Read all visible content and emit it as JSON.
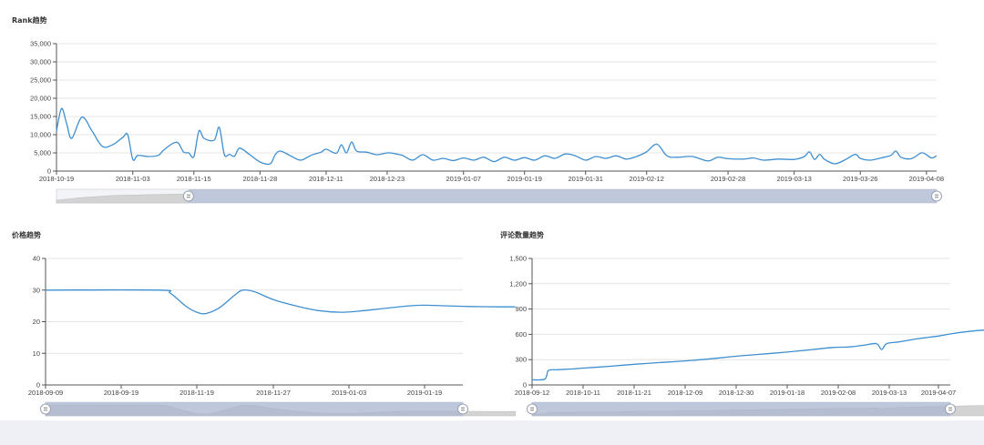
{
  "chart_data": [
    {
      "type": "line",
      "title": "Rank趋势",
      "ylim": [
        0,
        35000
      ],
      "y_ticks": [
        "0",
        "5,000",
        "10,000",
        "15,000",
        "20,000",
        "25,000",
        "30,000",
        "35,000"
      ],
      "x_ticks": [
        "2018-10-19",
        "2018-11-03",
        "2018-11-15",
        "2018-11-28",
        "2018-12-11",
        "2018-12-23",
        "2019-01-07",
        "2019-01-19",
        "2019-01-31",
        "2019-02-12",
        "2019-02-28",
        "2019-03-13",
        "2019-03-26",
        "2019-04-08"
      ],
      "x_range": [
        "2018-10-19",
        "2019-04-10"
      ],
      "grid": true,
      "color": "#3f8fd0",
      "data_zoom": [
        0.15,
        1.0
      ],
      "points": [
        [
          "2018-10-19",
          11000
        ],
        [
          "2018-10-20",
          17200
        ],
        [
          "2018-10-21",
          13000
        ],
        [
          "2018-10-22",
          9000
        ],
        [
          "2018-10-24",
          14800
        ],
        [
          "2018-10-26",
          11000
        ],
        [
          "2018-10-28",
          6800
        ],
        [
          "2018-10-30",
          7200
        ],
        [
          "2018-11-01",
          9200
        ],
        [
          "2018-11-02",
          10000
        ],
        [
          "2018-11-03",
          3200
        ],
        [
          "2018-11-04",
          4300
        ],
        [
          "2018-11-06",
          4000
        ],
        [
          "2018-11-08",
          4300
        ],
        [
          "2018-11-09",
          5700
        ],
        [
          "2018-11-11",
          7700
        ],
        [
          "2018-11-12",
          7600
        ],
        [
          "2018-11-13",
          5200
        ],
        [
          "2018-11-14",
          5000
        ],
        [
          "2018-11-15",
          4000
        ],
        [
          "2018-11-16",
          11000
        ],
        [
          "2018-11-17",
          9000
        ],
        [
          "2018-11-19",
          8500
        ],
        [
          "2018-11-20",
          12000
        ],
        [
          "2018-11-21",
          4500
        ],
        [
          "2018-11-22",
          4600
        ],
        [
          "2018-11-23",
          4100
        ],
        [
          "2018-11-24",
          6300
        ],
        [
          "2018-11-26",
          4500
        ],
        [
          "2018-11-28",
          2500
        ],
        [
          "2018-11-30",
          2000
        ],
        [
          "2018-12-01",
          4500
        ],
        [
          "2018-12-02",
          5500
        ],
        [
          "2018-12-04",
          4200
        ],
        [
          "2018-12-06",
          3000
        ],
        [
          "2018-12-08",
          4300
        ],
        [
          "2018-12-10",
          5200
        ],
        [
          "2018-12-11",
          6000
        ],
        [
          "2018-12-13",
          4900
        ],
        [
          "2018-12-14",
          7200
        ],
        [
          "2018-12-15",
          5000
        ],
        [
          "2018-12-16",
          8000
        ],
        [
          "2018-12-17",
          5500
        ],
        [
          "2018-12-19",
          5200
        ],
        [
          "2018-12-21",
          4500
        ],
        [
          "2018-12-23",
          5000
        ],
        [
          "2018-12-24",
          4900
        ],
        [
          "2018-12-26",
          4300
        ],
        [
          "2018-12-28",
          3000
        ],
        [
          "2018-12-30",
          4500
        ],
        [
          "2019-01-01",
          3000
        ],
        [
          "2019-01-03",
          3500
        ],
        [
          "2019-01-05",
          2900
        ],
        [
          "2019-01-07",
          3600
        ],
        [
          "2019-01-09",
          3000
        ],
        [
          "2019-01-11",
          3800
        ],
        [
          "2019-01-13",
          2600
        ],
        [
          "2019-01-15",
          3800
        ],
        [
          "2019-01-17",
          3000
        ],
        [
          "2019-01-19",
          3700
        ],
        [
          "2019-01-21",
          3000
        ],
        [
          "2019-01-23",
          4200
        ],
        [
          "2019-01-25",
          3500
        ],
        [
          "2019-01-27",
          4700
        ],
        [
          "2019-01-29",
          4200
        ],
        [
          "2019-01-31",
          3000
        ],
        [
          "2019-02-02",
          4000
        ],
        [
          "2019-02-04",
          3500
        ],
        [
          "2019-02-06",
          4200
        ],
        [
          "2019-02-08",
          3300
        ],
        [
          "2019-02-10",
          4000
        ],
        [
          "2019-02-12",
          5300
        ],
        [
          "2019-02-14",
          7400
        ],
        [
          "2019-02-16",
          4200
        ],
        [
          "2019-02-18",
          3800
        ],
        [
          "2019-02-21",
          4000
        ],
        [
          "2019-02-24",
          2800
        ],
        [
          "2019-02-26",
          3800
        ],
        [
          "2019-02-28",
          3400
        ],
        [
          "2019-03-03",
          3300
        ],
        [
          "2019-03-05",
          3600
        ],
        [
          "2019-03-07",
          3000
        ],
        [
          "2019-03-10",
          3300
        ],
        [
          "2019-03-13",
          3200
        ],
        [
          "2019-03-15",
          4000
        ],
        [
          "2019-03-16",
          5300
        ],
        [
          "2019-03-17",
          3200
        ],
        [
          "2019-03-18",
          4600
        ],
        [
          "2019-03-19",
          3200
        ],
        [
          "2019-03-21",
          2000
        ],
        [
          "2019-03-23",
          3100
        ],
        [
          "2019-03-25",
          4600
        ],
        [
          "2019-03-26",
          3500
        ],
        [
          "2019-03-28",
          3000
        ],
        [
          "2019-03-30",
          3600
        ],
        [
          "2019-04-01",
          4300
        ],
        [
          "2019-04-02",
          5500
        ],
        [
          "2019-04-03",
          3800
        ],
        [
          "2019-04-05",
          3400
        ],
        [
          "2019-04-07",
          5000
        ],
        [
          "2019-04-08",
          4500
        ],
        [
          "2019-04-09",
          3600
        ],
        [
          "2019-04-10",
          4200
        ]
      ]
    },
    {
      "type": "line",
      "title": "价格趋势",
      "ylim": [
        0,
        40
      ],
      "y_ticks": [
        "0",
        "10",
        "20",
        "30",
        "40"
      ],
      "x_ticks": [
        "2018-09-09",
        "2018-09-19",
        "2018-11-19",
        "2018-11-27",
        "2019-01-03",
        "2019-01-19"
      ],
      "grid": true,
      "color": "#3f8fd0",
      "data_zoom": [
        0.0,
        1.0
      ],
      "points": [
        [
          0,
          30
        ],
        [
          1.5,
          30
        ],
        [
          1.65,
          29
        ],
        [
          1.85,
          25
        ],
        [
          2.0,
          23
        ],
        [
          2.12,
          22.6
        ],
        [
          2.3,
          24.5
        ],
        [
          2.5,
          28.5
        ],
        [
          2.6,
          30
        ],
        [
          2.75,
          29.5
        ],
        [
          3.0,
          27
        ],
        [
          3.3,
          25
        ],
        [
          3.6,
          23.5
        ],
        [
          3.9,
          23
        ],
        [
          4.2,
          23.5
        ],
        [
          4.5,
          24.3
        ],
        [
          4.8,
          25
        ],
        [
          5.0,
          25.2
        ],
        [
          5.3,
          25
        ],
        [
          5.6,
          24.8
        ],
        [
          6.0,
          24.7
        ],
        [
          6.2,
          24.7
        ]
      ]
    },
    {
      "type": "line",
      "title": "评论数量趋势",
      "ylim": [
        0,
        1500
      ],
      "y_ticks": [
        "0",
        "300",
        "600",
        "900",
        "1,200",
        "1,500"
      ],
      "x_ticks": [
        "2018-09-12",
        "2018-10-11",
        "2018-11-21",
        "2018-12-09",
        "2018-12-30",
        "2019-01-18",
        "2019-02-08",
        "2019-03-13",
        "2019-04-07"
      ],
      "grid": true,
      "color": "#3f8fd0",
      "data_zoom": [
        0.0,
        1.0
      ],
      "points": [
        [
          0,
          60
        ],
        [
          0.25,
          70
        ],
        [
          0.32,
          170
        ],
        [
          0.5,
          180
        ],
        [
          0.8,
          190
        ],
        [
          1.0,
          200
        ],
        [
          1.5,
          220
        ],
        [
          2.0,
          245
        ],
        [
          2.5,
          265
        ],
        [
          3.0,
          285
        ],
        [
          3.5,
          310
        ],
        [
          4.0,
          340
        ],
        [
          4.5,
          365
        ],
        [
          5.0,
          390
        ],
        [
          5.5,
          420
        ],
        [
          5.9,
          445
        ],
        [
          6.2,
          450
        ],
        [
          6.5,
          470
        ],
        [
          6.75,
          490
        ],
        [
          6.85,
          420
        ],
        [
          6.95,
          490
        ],
        [
          7.2,
          510
        ],
        [
          7.6,
          550
        ],
        [
          8.0,
          580
        ],
        [
          8.3,
          610
        ],
        [
          8.7,
          640
        ],
        [
          9.1,
          660
        ],
        [
          9.4,
          690
        ],
        [
          9.55,
          630
        ],
        [
          9.8,
          650
        ],
        [
          10.0,
          670
        ],
        [
          10.3,
          680
        ]
      ]
    }
  ]
}
